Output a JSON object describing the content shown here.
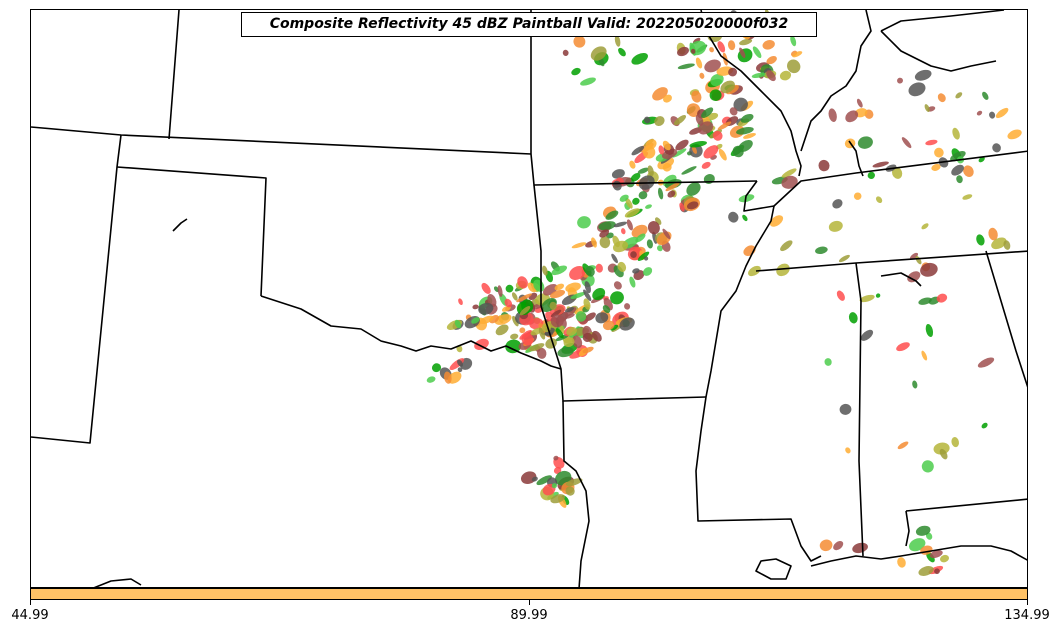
{
  "title": "Composite Reflectivity 45 dBZ Paintball Valid: 202205020000f032",
  "colorbar": {
    "color": "#ffc266",
    "ticks": [
      "44.99",
      "89.99",
      "134.99"
    ]
  },
  "member_colors": [
    "#ff4d4d",
    "#a05050",
    "#4ccd4c",
    "#2e8b2e",
    "#ffad33",
    "#f58c33",
    "#9e9e3a",
    "#b5b53a",
    "#555555",
    "#00a000",
    "#8b3a3a"
  ]
}
